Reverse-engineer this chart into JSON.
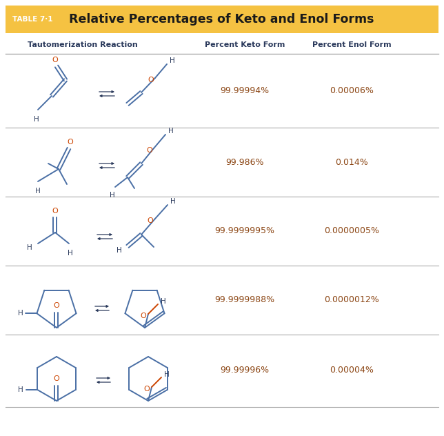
{
  "title_prefix": "TABLE 7·1",
  "title_main": "Relative Percentages of Keto and Enol Forms",
  "header_bg": "#F5C242",
  "header_text_color": "#FFFFFF",
  "title_main_color": "#1a1a1a",
  "col_headers": [
    "Tautomerization Reaction",
    "Percent Keto Form",
    "Percent Enol Form"
  ],
  "col_header_color": "#2B3A5C",
  "rows": [
    {
      "keto": "99.99994%",
      "enol": "0.00006%"
    },
    {
      "keto": "99.986%",
      "enol": "0.014%"
    },
    {
      "keto": "99.9999995%",
      "enol": "0.0000005%"
    },
    {
      "keto": "99.9999988%",
      "enol": "0.0000012%"
    },
    {
      "keto": "99.99996%",
      "enol": "0.00004%"
    }
  ],
  "data_color": "#8B4513",
  "line_color": "#AAAAAA",
  "bg_color": "#FFFFFF",
  "figsize": [
    6.44,
    6.32
  ],
  "dpi": 100,
  "struct_color": "#4A6FA5",
  "lw": 1.4,
  "oxygen_color": "#CC4400",
  "atom_color": "#2B3A5C"
}
